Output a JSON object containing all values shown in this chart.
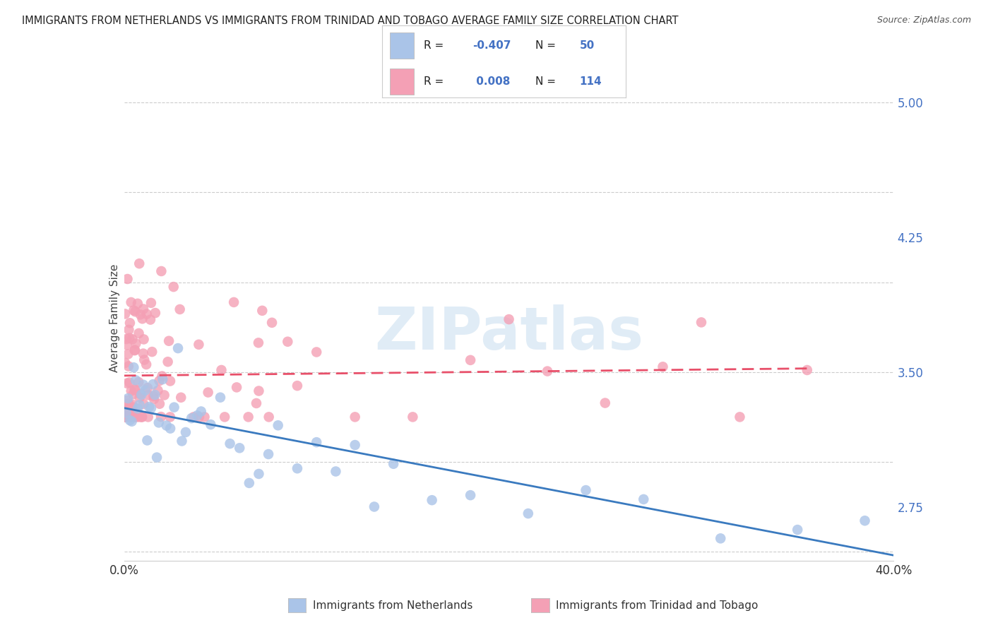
{
  "title": "IMMIGRANTS FROM NETHERLANDS VS IMMIGRANTS FROM TRINIDAD AND TOBAGO AVERAGE FAMILY SIZE CORRELATION CHART",
  "source": "Source: ZipAtlas.com",
  "ylabel": "Average Family Size",
  "xlim": [
    0.0,
    0.4
  ],
  "ylim": [
    2.45,
    5.15
  ],
  "yticks": [
    2.75,
    3.5,
    4.25,
    5.0
  ],
  "xticks": [
    0.0,
    0.05,
    0.1,
    0.15,
    0.2,
    0.25,
    0.3,
    0.35,
    0.4
  ],
  "series": [
    {
      "label": "Immigrants from Netherlands",
      "R": -0.407,
      "N": 50,
      "color_scatter": "#aac4e8",
      "color_line": "#3a7abf",
      "color_legend": "#aac4e8",
      "line_x": [
        0.0,
        0.4
      ],
      "line_y": [
        3.3,
        2.48
      ]
    },
    {
      "label": "Immigrants from Trinidad and Tobago",
      "R": 0.008,
      "N": 114,
      "color_scatter": "#f4a0b5",
      "color_line": "#e8506a",
      "color_legend": "#f4a0b5",
      "line_x": [
        0.0,
        0.355
      ],
      "line_y": [
        3.48,
        3.52
      ]
    }
  ],
  "watermark": "ZIPatlas",
  "background_color": "#ffffff",
  "grid_color": "#cccccc",
  "title_fontsize": 10.5,
  "tick_label_color_right": "#4472c4"
}
